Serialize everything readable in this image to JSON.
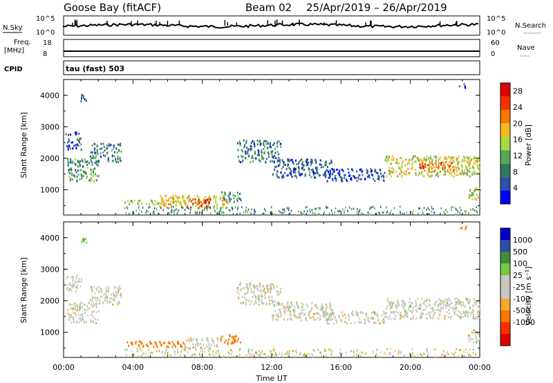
{
  "header": {
    "radar": "Goose Bay (fitACF)",
    "beam": "Beam 02",
    "dates": "25/Apr/2019 – 26/Apr/2019"
  },
  "status_panels": {
    "nsky": {
      "label": "N.Sky",
      "ticks_left": [
        "10^5",
        "10^0"
      ],
      "ticks_right": [
        "10^5",
        "10^0"
      ],
      "right_label": "N.Search",
      "right_dots": "·········"
    },
    "freq": {
      "label_line1": "Freq.",
      "label_line2": "[MHz]",
      "ticks_left": [
        "18",
        "8"
      ],
      "ticks_right": [
        "60",
        "0"
      ],
      "right_label": "Nave",
      "right_dots": "·····"
    },
    "cpid": {
      "label": "CPID",
      "value": "tau (fast) 503"
    }
  },
  "colors": {
    "power": [
      "#0000ff",
      "#2c4fa8",
      "#2f7a5a",
      "#56a856",
      "#a8d840",
      "#f8b820",
      "#f87800",
      "#f83000",
      "#e00000"
    ],
    "velocity": [
      "#e00000",
      "#f83000",
      "#f87800",
      "#f8a830",
      "#c8c8c0",
      "#c8c8c0",
      "#78c840",
      "#3c8c3c",
      "#2c4fa8",
      "#0000c8"
    ]
  },
  "chart_data": [
    {
      "type": "heatmap",
      "title": "",
      "ylabel": "Slant Range [km]",
      "xlabel": "",
      "xlim": [
        "00:00",
        "24:00"
      ],
      "ylim": [
        200,
        4500
      ],
      "yticks": [
        "1000",
        "2000",
        "3000",
        "4000"
      ],
      "xticks": [],
      "colorbar": {
        "label": "Power [dB]",
        "ticks": [
          "4",
          "8",
          "12",
          "16",
          "20",
          "24",
          "28"
        ],
        "range": [
          0,
          30
        ]
      },
      "regions": [
        {
          "t0": 0.2,
          "t1": 2.0,
          "r0": 1300,
          "r1": 2000,
          "value": 10
        },
        {
          "t0": 0.1,
          "t1": 1.0,
          "r0": 2300,
          "r1": 2850,
          "value": 6
        },
        {
          "t0": 1.5,
          "t1": 3.3,
          "r0": 1900,
          "r1": 2500,
          "value": 8
        },
        {
          "t0": 0.9,
          "t1": 1.3,
          "r0": 3800,
          "r1": 4050,
          "value": 6
        },
        {
          "t0": 3.5,
          "t1": 6.5,
          "r0": 550,
          "r1": 700,
          "value": 14
        },
        {
          "t0": 5.5,
          "t1": 9.5,
          "r0": 450,
          "r1": 850,
          "value": 18
        },
        {
          "t0": 7.3,
          "t1": 8.5,
          "r0": 450,
          "r1": 750,
          "value": 26
        },
        {
          "t0": 9.0,
          "t1": 10.2,
          "r0": 650,
          "r1": 950,
          "value": 9
        },
        {
          "t0": 10.0,
          "t1": 12.5,
          "r0": 1900,
          "r1": 2600,
          "value": 8
        },
        {
          "t0": 12.0,
          "t1": 15.5,
          "r0": 1400,
          "r1": 2000,
          "value": 6
        },
        {
          "t0": 15.0,
          "t1": 18.5,
          "r0": 1300,
          "r1": 1700,
          "value": 4
        },
        {
          "t0": 18.5,
          "t1": 24.0,
          "r0": 1450,
          "r1": 2100,
          "value": 16
        },
        {
          "t0": 20.5,
          "t1": 22.5,
          "r0": 1600,
          "r1": 1950,
          "value": 22
        },
        {
          "t0": 23.3,
          "t1": 24.0,
          "r0": 700,
          "r1": 1100,
          "value": 16
        },
        {
          "t0": 22.8,
          "t1": 23.2,
          "r0": 4250,
          "r1": 4400,
          "value": 6
        }
      ]
    },
    {
      "type": "heatmap",
      "title": "",
      "ylabel": "Slant Range [km]",
      "xlabel": "Time UT",
      "xlim": [
        "00:00",
        "24:00"
      ],
      "ylim": [
        200,
        4500
      ],
      "yticks": [
        "1000",
        "2000",
        "3000",
        "4000"
      ],
      "xticks": [
        "00:00",
        "04:00",
        "08:00",
        "12:00",
        "16:00",
        "20:00",
        "00:00"
      ],
      "colorbar": {
        "label": "Velocity [m s⁻¹]",
        "ticks": [
          "1000",
          "500",
          "100",
          "25",
          "-25",
          "-100",
          "-500",
          "-1000"
        ],
        "range": [
          -1000,
          1000
        ]
      },
      "regions": [
        {
          "t0": 0.2,
          "t1": 2.0,
          "r0": 1300,
          "r1": 2000,
          "value": 0
        },
        {
          "t0": 0.1,
          "t1": 1.0,
          "r0": 2300,
          "r1": 2850,
          "value": 0
        },
        {
          "t0": 1.5,
          "t1": 3.3,
          "r0": 1900,
          "r1": 2500,
          "value": 0
        },
        {
          "t0": 0.9,
          "t1": 1.3,
          "r0": 3800,
          "r1": 4050,
          "value": 80
        },
        {
          "t0": 3.5,
          "t1": 7.0,
          "r0": 550,
          "r1": 750,
          "value": -150
        },
        {
          "t0": 7.0,
          "t1": 9.0,
          "r0": 500,
          "r1": 850,
          "value": 0
        },
        {
          "t0": 9.0,
          "t1": 10.2,
          "r0": 650,
          "r1": 950,
          "value": -200
        },
        {
          "t0": 10.0,
          "t1": 12.5,
          "r0": 1900,
          "r1": 2600,
          "value": 0
        },
        {
          "t0": 12.0,
          "t1": 15.5,
          "r0": 1400,
          "r1": 2000,
          "value": 0
        },
        {
          "t0": 15.0,
          "t1": 18.5,
          "r0": 1300,
          "r1": 1700,
          "value": 0
        },
        {
          "t0": 18.5,
          "t1": 24.0,
          "r0": 1450,
          "r1": 2100,
          "value": 0
        },
        {
          "t0": 23.3,
          "t1": 24.0,
          "r0": 700,
          "r1": 1100,
          "value": 0
        },
        {
          "t0": 22.8,
          "t1": 23.2,
          "r0": 4250,
          "r1": 4400,
          "value": -150
        }
      ]
    }
  ]
}
